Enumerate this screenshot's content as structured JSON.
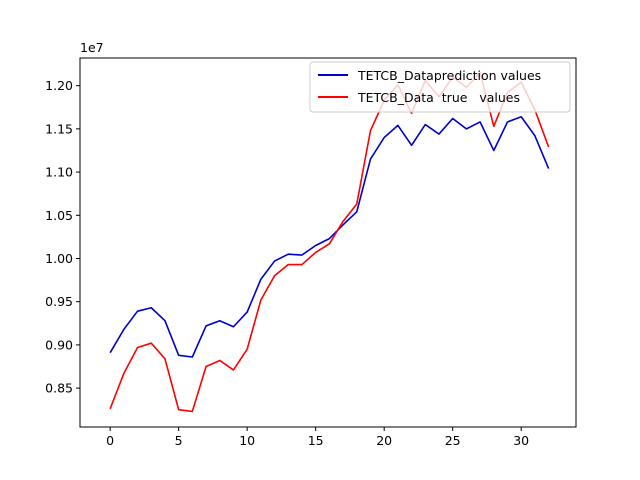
{
  "chart_data": {
    "type": "line",
    "title": "",
    "xlabel": "",
    "ylabel": "",
    "y_offset_label": "1e7",
    "y_multiplier": 10000000,
    "xlim": [
      -2.2,
      34.0
    ],
    "ylim": [
      0.805,
      1.232
    ],
    "x_ticks": [
      0,
      5,
      10,
      15,
      20,
      25,
      30
    ],
    "x_tick_labels": [
      "0",
      "5",
      "10",
      "15",
      "20",
      "25",
      "30"
    ],
    "y_ticks": [
      0.85,
      0.9,
      0.95,
      1.0,
      1.05,
      1.1,
      1.15,
      1.2
    ],
    "y_tick_labels": [
      "0.85",
      "0.90",
      "0.95",
      "1.00",
      "1.05",
      "1.10",
      "1.15",
      "1.20"
    ],
    "grid": false,
    "legend_position": "top-right",
    "x": [
      0,
      1,
      2,
      3,
      4,
      5,
      6,
      7,
      8,
      9,
      10,
      11,
      12,
      13,
      14,
      15,
      16,
      17,
      18,
      19,
      20,
      21,
      22,
      23,
      24,
      25,
      26,
      27,
      28,
      29,
      30,
      31,
      32
    ],
    "series": [
      {
        "name": "TETCB_Dataprediction values",
        "color": "#0000cc",
        "values": [
          0.891,
          0.918,
          0.939,
          0.943,
          0.928,
          0.888,
          0.886,
          0.922,
          0.928,
          0.921,
          0.938,
          0.976,
          0.997,
          1.005,
          1.004,
          1.015,
          1.023,
          1.039,
          1.054,
          1.115,
          1.14,
          1.154,
          1.131,
          1.155,
          1.144,
          1.162,
          1.15,
          1.158,
          1.125,
          1.158,
          1.164,
          1.142,
          1.104
        ]
      },
      {
        "name": "TETCB_Data  true   values",
        "color": "#ff0000",
        "values": [
          0.826,
          0.867,
          0.897,
          0.902,
          0.884,
          0.825,
          0.823,
          0.875,
          0.882,
          0.871,
          0.895,
          0.952,
          0.98,
          0.993,
          0.993,
          1.007,
          1.017,
          1.043,
          1.063,
          1.148,
          1.183,
          1.201,
          1.168,
          1.206,
          1.187,
          1.21,
          1.198,
          1.215,
          1.153,
          1.192,
          1.204,
          1.172,
          1.129
        ]
      }
    ]
  }
}
